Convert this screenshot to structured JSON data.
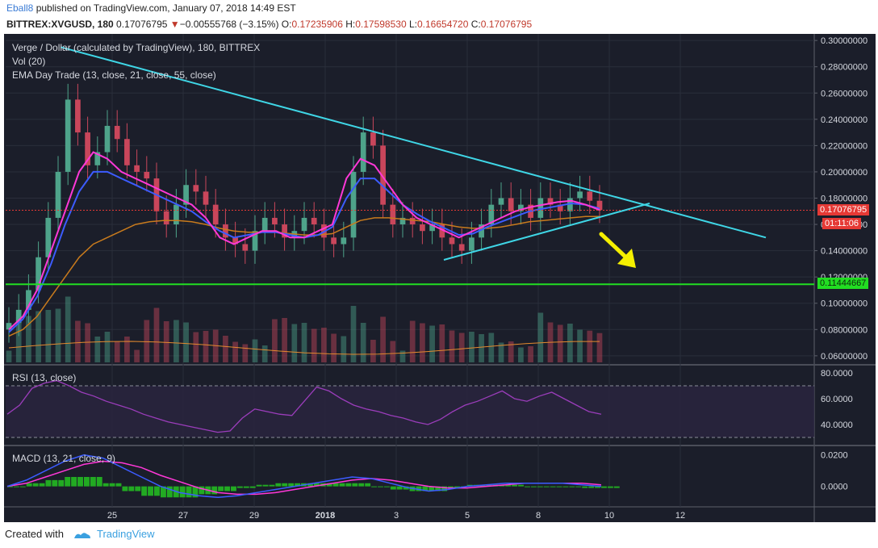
{
  "header": {
    "author": "Eball8",
    "published_text": "published on TradingView.com, January 07, 2018 14:49 EST",
    "symbol_line": "BITTREX:XVGUSD, 180",
    "price": "0.17076795",
    "change_arrow": "▼",
    "change": "−0.00555768 (−3.15%)",
    "o_label": "O:",
    "o_value": "0.17235906",
    "h_label": "H:",
    "h_value": "0.17598530",
    "l_label": "L:",
    "l_value": "0.16654720",
    "c_label": "C:",
    "c_value": "0.17076795"
  },
  "legend": {
    "title": "Verge / Dollar (calculated by TradingView), 180, BITTREX",
    "vol": "Vol (20)",
    "ema": "EMA Day Trade (13, close, 21, close, 55, close)",
    "rsi": "RSI (13, close)",
    "macd": "MACD (13, 21, close, 9)"
  },
  "price_axis": {
    "ticks": [
      "0.30000000",
      "0.28000000",
      "0.26000000",
      "0.24000000",
      "0.22000000",
      "0.20000000",
      "0.18000000",
      "0.16000000",
      "0.14000000",
      "0.12000000",
      "0.10000000",
      "0.08000000",
      "0.06000000"
    ],
    "current_price_label": "0.17076795",
    "countdown_label": "01:11:06",
    "support_label": "0.11444667"
  },
  "rsi_axis": {
    "ticks": [
      "80.0000",
      "60.0000",
      "40.0000"
    ]
  },
  "macd_axis": {
    "ticks": [
      "0.0200",
      "0.0000"
    ]
  },
  "time_axis": {
    "ticks": [
      "25",
      "27",
      "29",
      "2018",
      "3",
      "5",
      "8",
      "10",
      "12"
    ]
  },
  "footer": {
    "created_with": "Created with",
    "brand": "TradingView"
  },
  "colors": {
    "background": "#1b1e2a",
    "up_candle": "#4ea38a",
    "down_candle": "#c9465b",
    "ema_fast": "#ff38d8",
    "ema_mid": "#3c5cff",
    "ema_slow": "#c97b1d",
    "trendline": "#3fd6e6",
    "support_line": "#22dd22",
    "arrow": "#f5ef00",
    "rsi_line": "#9b3dbb",
    "macd_line": "#3c5cff",
    "signal_line": "#ff38d8",
    "histogram": "#22aa22"
  },
  "chart_data": {
    "type": "candlestick",
    "symbol": "XVGUSD",
    "interval": "180",
    "ylim": [
      0.055,
      0.305
    ],
    "x_labels": [
      "25",
      "27",
      "29",
      "2018",
      "3",
      "5",
      "8",
      "10",
      "12"
    ],
    "close_series": [
      0.085,
      0.095,
      0.11,
      0.135,
      0.165,
      0.2,
      0.255,
      0.23,
      0.205,
      0.215,
      0.235,
      0.225,
      0.205,
      0.2,
      0.195,
      0.17,
      0.16,
      0.175,
      0.19,
      0.185,
      0.175,
      0.16,
      0.15,
      0.145,
      0.14,
      0.155,
      0.165,
      0.16,
      0.15,
      0.155,
      0.165,
      0.16,
      0.15,
      0.145,
      0.15,
      0.2,
      0.23,
      0.22,
      0.175,
      0.16,
      0.165,
      0.16,
      0.155,
      0.16,
      0.15,
      0.145,
      0.14,
      0.15,
      0.16,
      0.175,
      0.18,
      0.17,
      0.175,
      0.165,
      0.18,
      0.175,
      0.17,
      0.18,
      0.185,
      0.178,
      0.171
    ],
    "ema_fast_series": [
      0.08,
      0.09,
      0.11,
      0.14,
      0.17,
      0.2,
      0.215,
      0.21,
      0.2,
      0.195,
      0.19,
      0.185,
      0.18,
      0.175,
      0.165,
      0.15,
      0.145,
      0.15,
      0.155,
      0.155,
      0.15,
      0.15,
      0.155,
      0.16,
      0.195,
      0.21,
      0.205,
      0.19,
      0.175,
      0.165,
      0.16,
      0.155,
      0.15,
      0.155,
      0.16,
      0.165,
      0.17,
      0.173,
      0.175,
      0.177,
      0.178,
      0.175,
      0.171
    ],
    "ema_mid_series": [
      0.078,
      0.088,
      0.105,
      0.13,
      0.16,
      0.185,
      0.2,
      0.2,
      0.195,
      0.19,
      0.185,
      0.18,
      0.175,
      0.17,
      0.162,
      0.155,
      0.15,
      0.152,
      0.154,
      0.154,
      0.152,
      0.15,
      0.152,
      0.158,
      0.18,
      0.195,
      0.195,
      0.185,
      0.175,
      0.168,
      0.162,
      0.157,
      0.152,
      0.153,
      0.158,
      0.162,
      0.166,
      0.17,
      0.172,
      0.174,
      0.176,
      0.175,
      0.172
    ],
    "ema_slow_series": [
      0.075,
      0.08,
      0.09,
      0.105,
      0.12,
      0.135,
      0.145,
      0.15,
      0.155,
      0.16,
      0.162,
      0.163,
      0.163,
      0.162,
      0.16,
      0.157,
      0.155,
      0.154,
      0.154,
      0.154,
      0.153,
      0.152,
      0.152,
      0.153,
      0.158,
      0.163,
      0.165,
      0.165,
      0.164,
      0.163,
      0.162,
      0.16,
      0.158,
      0.157,
      0.157,
      0.158,
      0.16,
      0.162,
      0.163,
      0.164,
      0.165,
      0.166,
      0.166
    ],
    "annotations": {
      "current_price": 0.17076795,
      "horizontal_support": 0.11444667,
      "descending_trendline": [
        [
          0.295,
          "start"
        ],
        [
          0.15,
          "end"
        ]
      ],
      "ascending_trendline": [
        [
          0.133,
          "start"
        ],
        [
          0.176,
          "apex"
        ]
      ],
      "projection_arrow": "down"
    },
    "rsi": {
      "ylim": [
        25,
        85
      ],
      "values": [
        48,
        55,
        68,
        72,
        74,
        70,
        65,
        62,
        58,
        55,
        52,
        48,
        45,
        42,
        40,
        38,
        36,
        34,
        35,
        45,
        52,
        50,
        48,
        47,
        58,
        69,
        66,
        60,
        55,
        52,
        50,
        47,
        45,
        42,
        40,
        44,
        50,
        55,
        58,
        62,
        66,
        60,
        58,
        62,
        65,
        60,
        55,
        50,
        48
      ]
    },
    "macd": {
      "ylim": [
        -0.012,
        0.025
      ],
      "macd_values": [
        0.0,
        0.004,
        0.01,
        0.016,
        0.02,
        0.018,
        0.012,
        0.006,
        0.0,
        -0.004,
        -0.006,
        -0.007,
        -0.006,
        -0.004,
        -0.002,
        0.0,
        0.002,
        0.004,
        0.006,
        0.005,
        0.002,
        -0.001,
        -0.003,
        -0.002,
        0.0,
        0.001,
        0.002,
        0.002,
        0.002,
        0.002,
        0.001,
        0.0
      ],
      "signal_values": [
        0.0,
        0.002,
        0.006,
        0.01,
        0.014,
        0.016,
        0.015,
        0.012,
        0.007,
        0.003,
        -0.001,
        -0.004,
        -0.005,
        -0.005,
        -0.004,
        -0.002,
        0.0,
        0.002,
        0.004,
        0.005,
        0.004,
        0.002,
        0.0,
        -0.001,
        -0.001,
        0.0,
        0.001,
        0.002,
        0.002,
        0.002,
        0.002,
        0.001
      ]
    }
  }
}
